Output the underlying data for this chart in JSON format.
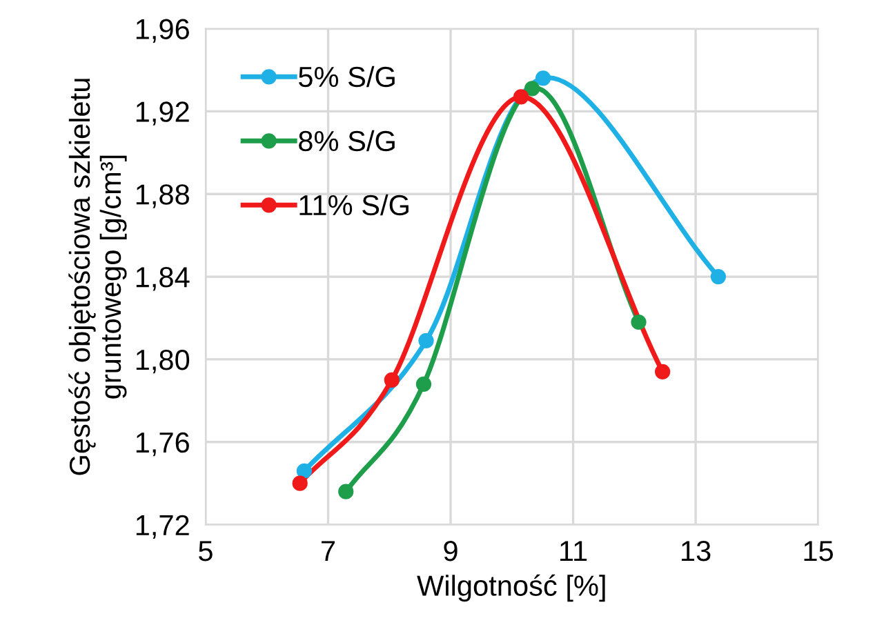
{
  "chart_data": {
    "type": "line",
    "xlabel": "Wilgotność [%]",
    "ylabel": "Gęstość objętościowa szkieletu\ngruntowego [g/cm³]",
    "xlim": [
      5,
      15
    ],
    "xticks": [
      5,
      7,
      9,
      11,
      13,
      15
    ],
    "ylim": [
      1.72,
      1.96
    ],
    "yticks": [
      {
        "value": 1.72,
        "label": "1,72"
      },
      {
        "value": 1.76,
        "label": "1,76"
      },
      {
        "value": 1.8,
        "label": "1,80"
      },
      {
        "value": 1.84,
        "label": "1,84"
      },
      {
        "value": 1.88,
        "label": "1,88"
      },
      {
        "value": 1.92,
        "label": "1,92"
      },
      {
        "value": 1.96,
        "label": "1,96"
      }
    ],
    "grid": true,
    "legend": "top left",
    "marker": "circle",
    "line_style": "solid",
    "series": [
      {
        "name": "5% S/G",
        "color": "#1fb0e6",
        "x": [
          6.61,
          8.6,
          10.51,
          13.37
        ],
        "values": [
          1.746,
          1.809,
          1.936,
          1.84
        ]
      },
      {
        "name": "8% S/G",
        "color": "#1e9e4a",
        "x": [
          7.29,
          8.56,
          10.33,
          12.07
        ],
        "values": [
          1.736,
          1.788,
          1.931,
          1.818
        ]
      },
      {
        "name": "11% S/G",
        "color": "#f01a1a",
        "x": [
          6.54,
          8.04,
          10.15,
          12.46
        ],
        "values": [
          1.74,
          1.79,
          1.927,
          1.794
        ]
      }
    ]
  }
}
